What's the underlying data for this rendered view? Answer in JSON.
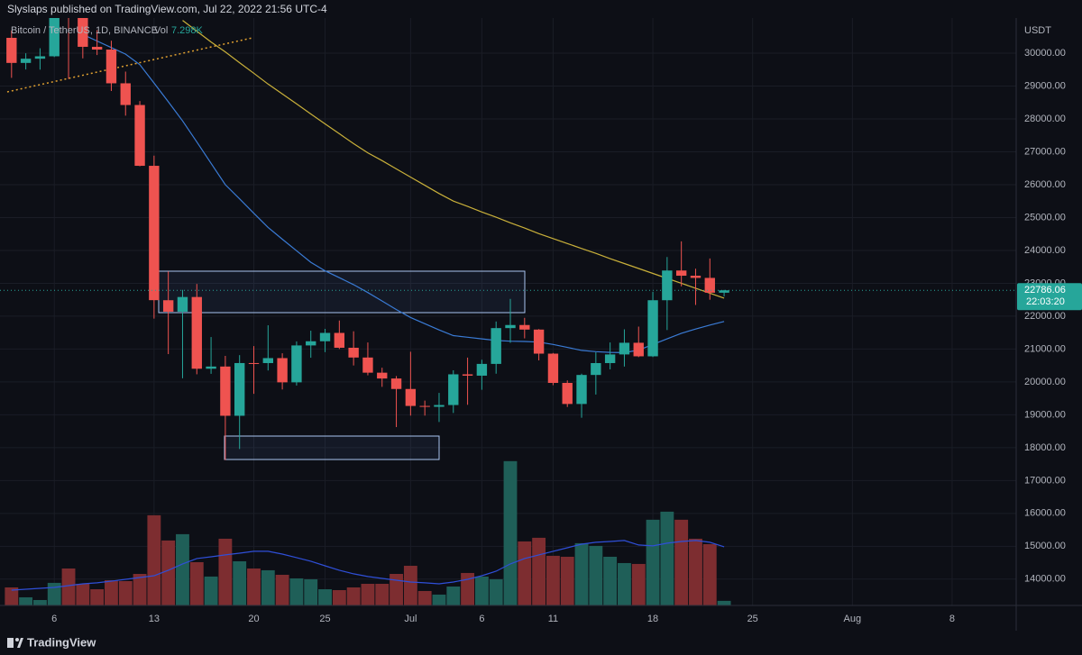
{
  "chart_data": {
    "type": "candlestick",
    "publisher": "Slyslaps published on TradingView.com, Jul 22, 2022 21:56 UTC-4",
    "title": "Bitcoin / TetherUS, 1D, BINANCE",
    "y_axis_label": "USDT",
    "brand": "TradingView",
    "x": [
      "2022-06-03",
      "2022-06-04",
      "2022-06-05",
      "2022-06-06",
      "2022-06-07",
      "2022-06-08",
      "2022-06-09",
      "2022-06-10",
      "2022-06-11",
      "2022-06-12",
      "2022-06-13",
      "2022-06-14",
      "2022-06-15",
      "2022-06-16",
      "2022-06-17",
      "2022-06-18",
      "2022-06-19",
      "2022-06-20",
      "2022-06-21",
      "2022-06-22",
      "2022-06-23",
      "2022-06-24",
      "2022-06-25",
      "2022-06-26",
      "2022-06-27",
      "2022-06-28",
      "2022-06-29",
      "2022-06-30",
      "2022-07-01",
      "2022-07-02",
      "2022-07-03",
      "2022-07-04",
      "2022-07-05",
      "2022-07-06",
      "2022-07-07",
      "2022-07-08",
      "2022-07-09",
      "2022-07-10",
      "2022-07-11",
      "2022-07-12",
      "2022-07-13",
      "2022-07-14",
      "2022-07-15",
      "2022-07-16",
      "2022-07-17",
      "2022-07-18",
      "2022-07-19",
      "2022-07-20",
      "2022-07-21",
      "2022-07-22",
      "2022-07-23"
    ],
    "open": [
      30467,
      29704,
      29832,
      29906,
      31370,
      31125,
      30194,
      30110,
      29084,
      28424,
      26574,
      22485,
      22136,
      22583,
      20401,
      20468,
      18970,
      20574,
      20573,
      20724,
      19987,
      21110,
      21237,
      21491,
      21039,
      20742,
      20281,
      20104,
      19785,
      19269,
      19243,
      19297,
      20231,
      20190,
      20548,
      21637,
      21731,
      21592,
      20860,
      19970,
      19329,
      20212,
      20573,
      20836,
      21191,
      20779,
      22485,
      23389,
      23231,
      23164,
      22714
    ],
    "high": [
      30690,
      29998,
      30150,
      31765,
      31549,
      31330,
      30700,
      30380,
      29440,
      28544,
      26883,
      23362,
      22800,
      22980,
      21365,
      20792,
      20815,
      21090,
      21723,
      20871,
      21233,
      21558,
      21614,
      21868,
      21540,
      21200,
      20432,
      20179,
      20918,
      19432,
      19666,
      20354,
      20740,
      20675,
      21838,
      22527,
      21950,
      21607,
      20880,
      20046,
      20250,
      20900,
      21200,
      21600,
      21683,
      22741,
      23800,
      24276,
      23444,
      23756,
      22800
    ],
    "low": [
      29250,
      29505,
      29500,
      29883,
      29218,
      29843,
      29944,
      28850,
      28100,
      26560,
      21925,
      20846,
      20111,
      20232,
      20246,
      17622,
      17960,
      19637,
      20348,
      19770,
      19890,
      20736,
      20906,
      21000,
      20500,
      20200,
      19850,
      18626,
      18975,
      18975,
      18781,
      19055,
      19304,
      19761,
      20250,
      21189,
      21325,
      20655,
      19900,
      19238,
      18910,
      19616,
      20382,
      20467,
      20755,
      20757,
      21578,
      22906,
      22341,
      22500,
      22600
    ],
    "close": [
      29704,
      29832,
      29906,
      31370,
      31125,
      30194,
      30110,
      29084,
      28424,
      26574,
      22487,
      22136,
      22583,
      20401,
      20468,
      18970,
      20574,
      20573,
      20724,
      19987,
      21110,
      21237,
      21491,
      21039,
      20742,
      20281,
      20104,
      19785,
      19269,
      19243,
      19297,
      20231,
      20190,
      20548,
      21637,
      21731,
      21592,
      20860,
      19970,
      19329,
      20212,
      20573,
      20836,
      21191,
      20779,
      22485,
      23389,
      23231,
      23164,
      22714,
      22786.06
    ],
    "up_color": "#26a69a",
    "down_color": "#ef5350",
    "moving_averages": [
      {
        "color": "#c9b03a",
        "values": [
          null,
          null,
          null,
          null,
          null,
          null,
          null,
          null,
          null,
          null,
          null,
          null,
          31000,
          30670,
          30340,
          30040,
          29710,
          29390,
          29060,
          28760,
          28460,
          28150,
          27850,
          27550,
          27250,
          26970,
          26730,
          26480,
          26230,
          25980,
          25730,
          25500,
          25340,
          25170,
          25010,
          24840,
          24680,
          24510,
          24360,
          24210,
          24060,
          23910,
          23750,
          23600,
          23450,
          23300,
          23150,
          23000,
          22850,
          22700,
          22550
        ]
      },
      {
        "color": "#3a7bd5",
        "values": [
          null,
          null,
          null,
          null,
          null,
          30570,
          30370,
          30170,
          29970,
          29650,
          29090,
          28520,
          27940,
          27300,
          26650,
          26000,
          25570,
          25130,
          24700,
          24340,
          23990,
          23640,
          23380,
          23170,
          22960,
          22720,
          22460,
          22200,
          21960,
          21770,
          21580,
          21410,
          21360,
          21310,
          21260,
          21240,
          21230,
          21210,
          21140,
          21050,
          20960,
          20920,
          20900,
          20890,
          20970,
          21140,
          21310,
          21480,
          21610,
          21730,
          21840
        ]
      }
    ],
    "volume": {
      "label": "Vol",
      "current_label": "7.298K",
      "values": [
        28600,
        12900,
        8600,
        35800,
        58600,
        34300,
        25700,
        40000,
        38600,
        50000,
        143000,
        103000,
        113000,
        68600,
        45800,
        105800,
        70000,
        58600,
        55800,
        48600,
        42900,
        41500,
        25700,
        24300,
        28600,
        34300,
        34300,
        50000,
        62900,
        22900,
        17200,
        30000,
        51500,
        45800,
        41500,
        228800,
        101500,
        107300,
        78700,
        77200,
        98700,
        94400,
        77200,
        67200,
        65800,
        135900,
        148700,
        135900,
        105800,
        97200,
        7298
      ],
      "ma": [
        24300,
        25700,
        27200,
        28600,
        31500,
        34300,
        35800,
        38600,
        41500,
        44300,
        47200,
        55800,
        65800,
        74400,
        77200,
        80100,
        82900,
        85800,
        85800,
        81500,
        75800,
        70100,
        62900,
        55800,
        50100,
        45800,
        42900,
        40000,
        37200,
        35800,
        34300,
        37200,
        41500,
        47200,
        54300,
        65800,
        74400,
        80100,
        85800,
        91500,
        97200,
        100100,
        101500,
        103000,
        95800,
        94400,
        98700,
        101500,
        103000,
        100100,
        93000
      ],
      "ma_color": "#2f4fd8",
      "up_color": "#1f5f58",
      "down_color": "#7d2d30",
      "lim": [
        0,
        240000
      ]
    },
    "last_price": {
      "value": 22786.06,
      "label": "22786.06",
      "countdown": "22:03:20"
    },
    "ylim": [
      13200,
      31070
    ],
    "yticks": [
      {
        "value": 14000,
        "label": "14000.00"
      },
      {
        "value": 15000,
        "label": "15000.00"
      },
      {
        "value": 16000,
        "label": "16000.00"
      },
      {
        "value": 17000,
        "label": "17000.00"
      },
      {
        "value": 18000,
        "label": "18000.00"
      },
      {
        "value": 19000,
        "label": "19000.00"
      },
      {
        "value": 20000,
        "label": "20000.00"
      },
      {
        "value": 21000,
        "label": "21000.00"
      },
      {
        "value": 22000,
        "label": "22000.00"
      },
      {
        "value": 23000,
        "label": "23000.00"
      },
      {
        "value": 24000,
        "label": "24000.00"
      },
      {
        "value": 25000,
        "label": "25000.00"
      },
      {
        "value": 26000,
        "label": "26000.00"
      },
      {
        "value": 27000,
        "label": "27000.00"
      },
      {
        "value": 28000,
        "label": "28000.00"
      },
      {
        "value": 29000,
        "label": "29000.00"
      },
      {
        "value": 30000,
        "label": "30000.00"
      }
    ],
    "xlim": [
      "2022-06-02",
      "2022-08-13"
    ],
    "xticks": [
      {
        "value": "2022-06-06",
        "label": "6"
      },
      {
        "value": "2022-06-13",
        "label": "13"
      },
      {
        "value": "2022-06-20",
        "label": "20"
      },
      {
        "value": "2022-06-25",
        "label": "25"
      },
      {
        "value": "2022-07-01",
        "label": "Jul"
      },
      {
        "value": "2022-07-06",
        "label": "6"
      },
      {
        "value": "2022-07-11",
        "label": "11"
      },
      {
        "value": "2022-07-18",
        "label": "18"
      },
      {
        "value": "2022-07-25",
        "label": "25"
      },
      {
        "value": "2022-08-01",
        "label": "Aug"
      },
      {
        "value": "2022-08-08",
        "label": "8"
      }
    ],
    "grid": true
  }
}
